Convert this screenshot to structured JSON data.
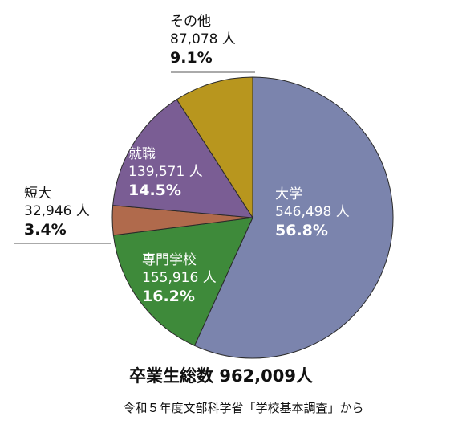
{
  "chart_data": {
    "type": "pie",
    "slices": [
      {
        "label": "大学",
        "count": "546,498 人",
        "percent_label": "56.8%",
        "value": 56.8,
        "color": "#7b84ad"
      },
      {
        "label": "専門学校",
        "count": "155,916 人",
        "percent_label": "16.2%",
        "value": 16.2,
        "color": "#3e8a3a"
      },
      {
        "label": "短大",
        "count": "32,946 人",
        "percent_label": "3.4%",
        "value": 3.4,
        "color": "#b06a4c"
      },
      {
        "label": "就職",
        "count": "139,571 人",
        "percent_label": "14.5%",
        "value": 14.5,
        "color": "#7a5d94"
      },
      {
        "label": "その他",
        "count": "87,078 人",
        "percent_label": "9.1%",
        "value": 9.1,
        "color": "#b8961e"
      }
    ],
    "start": "12 o'clock",
    "direction": "clockwise",
    "edge_color": "#2a2a2a"
  },
  "total_label": "卒業生総数 962,009人",
  "source_label": "令和５年度文部科学省「学校基本調査」から"
}
